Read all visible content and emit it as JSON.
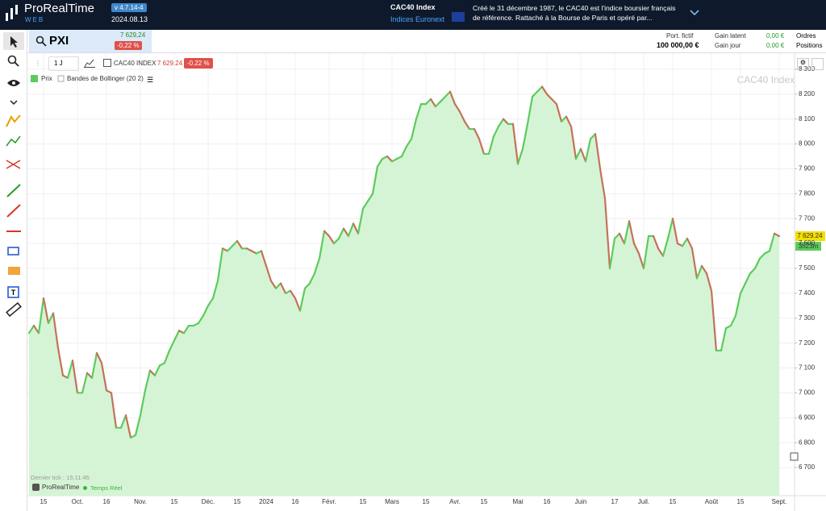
{
  "header": {
    "brand": "ProRealTime",
    "brand_sub": "WEB",
    "version": "v 4.7.14-4",
    "date": "2024.08.13",
    "instrument": "CAC40 Index",
    "market": "Indices Euronext",
    "description": "Créé le 31 décembre 1987, le CAC40 est l'indice boursier français de référence. Rattaché à la Bourse de Paris et opéré par..."
  },
  "instrument_bar": {
    "symbol": "PXI",
    "price": "7 629,24",
    "change": "-0,22 %",
    "portfolio_label": "Port. fictif",
    "portfolio_value": "100 000,00 €",
    "gain_latent_label": "Gain latent",
    "gain_latent_value": "0,00 €",
    "gain_day_label": "Gain jour",
    "gain_day_value": "0,00 €",
    "orders": "Ordres",
    "positions": "Positions"
  },
  "toolbar": {
    "period": "1 J",
    "instrument": "CAC40 INDEX",
    "price": "7 629.24",
    "change": "-0.22 %"
  },
  "chart_data": {
    "type": "line",
    "watermark": "CAC40 Index",
    "indicators": [
      "Bandes de Bollinger (20 2)"
    ],
    "last_price_label": "7 629.24",
    "countdown": "3h23m",
    "categories": [
      null,
      null,
      null,
      "15",
      null,
      null,
      null,
      null,
      null,
      null,
      "Oct.",
      null,
      null,
      null,
      null,
      null,
      "16",
      null,
      null,
      null,
      null,
      null,
      null,
      "Nov.",
      null,
      null,
      null,
      null,
      null,
      null,
      "15",
      null,
      null,
      null,
      null,
      null,
      null,
      "Déc.",
      null,
      null,
      null,
      null,
      null,
      "15",
      null,
      null,
      null,
      null,
      null,
      "2024",
      null,
      null,
      null,
      null,
      null,
      "16",
      null,
      null,
      null,
      null,
      null,
      null,
      "Févr.",
      null,
      null,
      null,
      null,
      null,
      null,
      "15",
      null,
      null,
      null,
      null,
      null,
      "Mars",
      null,
      null,
      null,
      null,
      null,
      null,
      "15",
      null,
      null,
      null,
      null,
      null,
      "Avr.",
      null,
      null,
      null,
      null,
      null,
      "15",
      null,
      null,
      null,
      null,
      null,
      null,
      "Mai",
      null,
      null,
      null,
      null,
      null,
      "16",
      null,
      null,
      null,
      null,
      null,
      null,
      "Juin",
      null,
      null,
      null,
      null,
      null,
      null,
      "17",
      null,
      null,
      null,
      null,
      null,
      "Juil.",
      null,
      null,
      null,
      null,
      null,
      "15",
      null,
      null,
      null,
      null,
      null,
      null,
      null,
      "Août",
      null,
      null,
      null,
      null,
      null,
      "15",
      null,
      null,
      null,
      null,
      null,
      null,
      null,
      "Sept."
    ],
    "series": [
      {
        "name": "Prix",
        "color": "#5ccb5c",
        "down_color": "#c47258",
        "fill": "#d5f4d5",
        "values": [
          7240,
          7270,
          7240,
          7380,
          7280,
          7320,
          7180,
          7070,
          7060,
          7130,
          7000,
          7000,
          7080,
          7060,
          7160,
          7120,
          7010,
          7000,
          6860,
          6860,
          6910,
          6820,
          6830,
          6910,
          7010,
          7090,
          7070,
          7110,
          7120,
          7170,
          7210,
          7250,
          7240,
          7270,
          7270,
          7280,
          7310,
          7350,
          7380,
          7450,
          7580,
          7570,
          7590,
          7610,
          7580,
          7580,
          7570,
          7560,
          7570,
          7510,
          7450,
          7420,
          7440,
          7400,
          7410,
          7380,
          7330,
          7420,
          7440,
          7480,
          7540,
          7650,
          7630,
          7600,
          7620,
          7660,
          7630,
          7680,
          7640,
          7740,
          7770,
          7800,
          7910,
          7940,
          7950,
          7930,
          7940,
          7950,
          7990,
          8020,
          8100,
          8160,
          8160,
          8180,
          8150,
          8170,
          8190,
          8210,
          8160,
          8130,
          8090,
          8060,
          8060,
          8020,
          7960,
          7960,
          8030,
          8070,
          8100,
          8080,
          8080,
          7920,
          7980,
          8080,
          8190,
          8210,
          8230,
          8200,
          8180,
          8160,
          8090,
          8110,
          8070,
          7940,
          7980,
          7930,
          8020,
          8040,
          7900,
          7780,
          7500,
          7620,
          7640,
          7600,
          7690,
          7600,
          7560,
          7500,
          7630,
          7630,
          7580,
          7550,
          7620,
          7700,
          7600,
          7590,
          7620,
          7580,
          7460,
          7510,
          7480,
          7410,
          7170,
          7170,
          7260,
          7270,
          7310,
          7400,
          7440,
          7480,
          7500,
          7540,
          7560,
          7570,
          7640,
          7629.24
        ]
      }
    ],
    "ylim": [
      6587,
      8358
    ],
    "yticks": [
      {
        "value": 6700,
        "label": "6 700"
      },
      {
        "value": 6800,
        "label": "6 800"
      },
      {
        "value": 6900,
        "label": "6 900"
      },
      {
        "value": 7000,
        "label": "7 000"
      },
      {
        "value": 7100,
        "label": "7 100"
      },
      {
        "value": 7200,
        "label": "7 200"
      },
      {
        "value": 7300,
        "label": "7 300"
      },
      {
        "value": 7400,
        "label": "7 400"
      },
      {
        "value": 7500,
        "label": "7 500"
      },
      {
        "value": 7600,
        "label": "7 600"
      },
      {
        "value": 7700,
        "label": "7 700"
      },
      {
        "value": 7800,
        "label": "7 800"
      },
      {
        "value": 7900,
        "label": "7 900"
      },
      {
        "value": 8000,
        "label": "8 000"
      },
      {
        "value": 8100,
        "label": "8 100"
      },
      {
        "value": 8200,
        "label": "8 200"
      },
      {
        "value": 8300,
        "label": "8 300"
      }
    ],
    "grid": true
  },
  "footer": {
    "last_tick": "Dernier tick : 15:11:45",
    "brand": "ProRealTime",
    "feed": "Temps Réel"
  }
}
